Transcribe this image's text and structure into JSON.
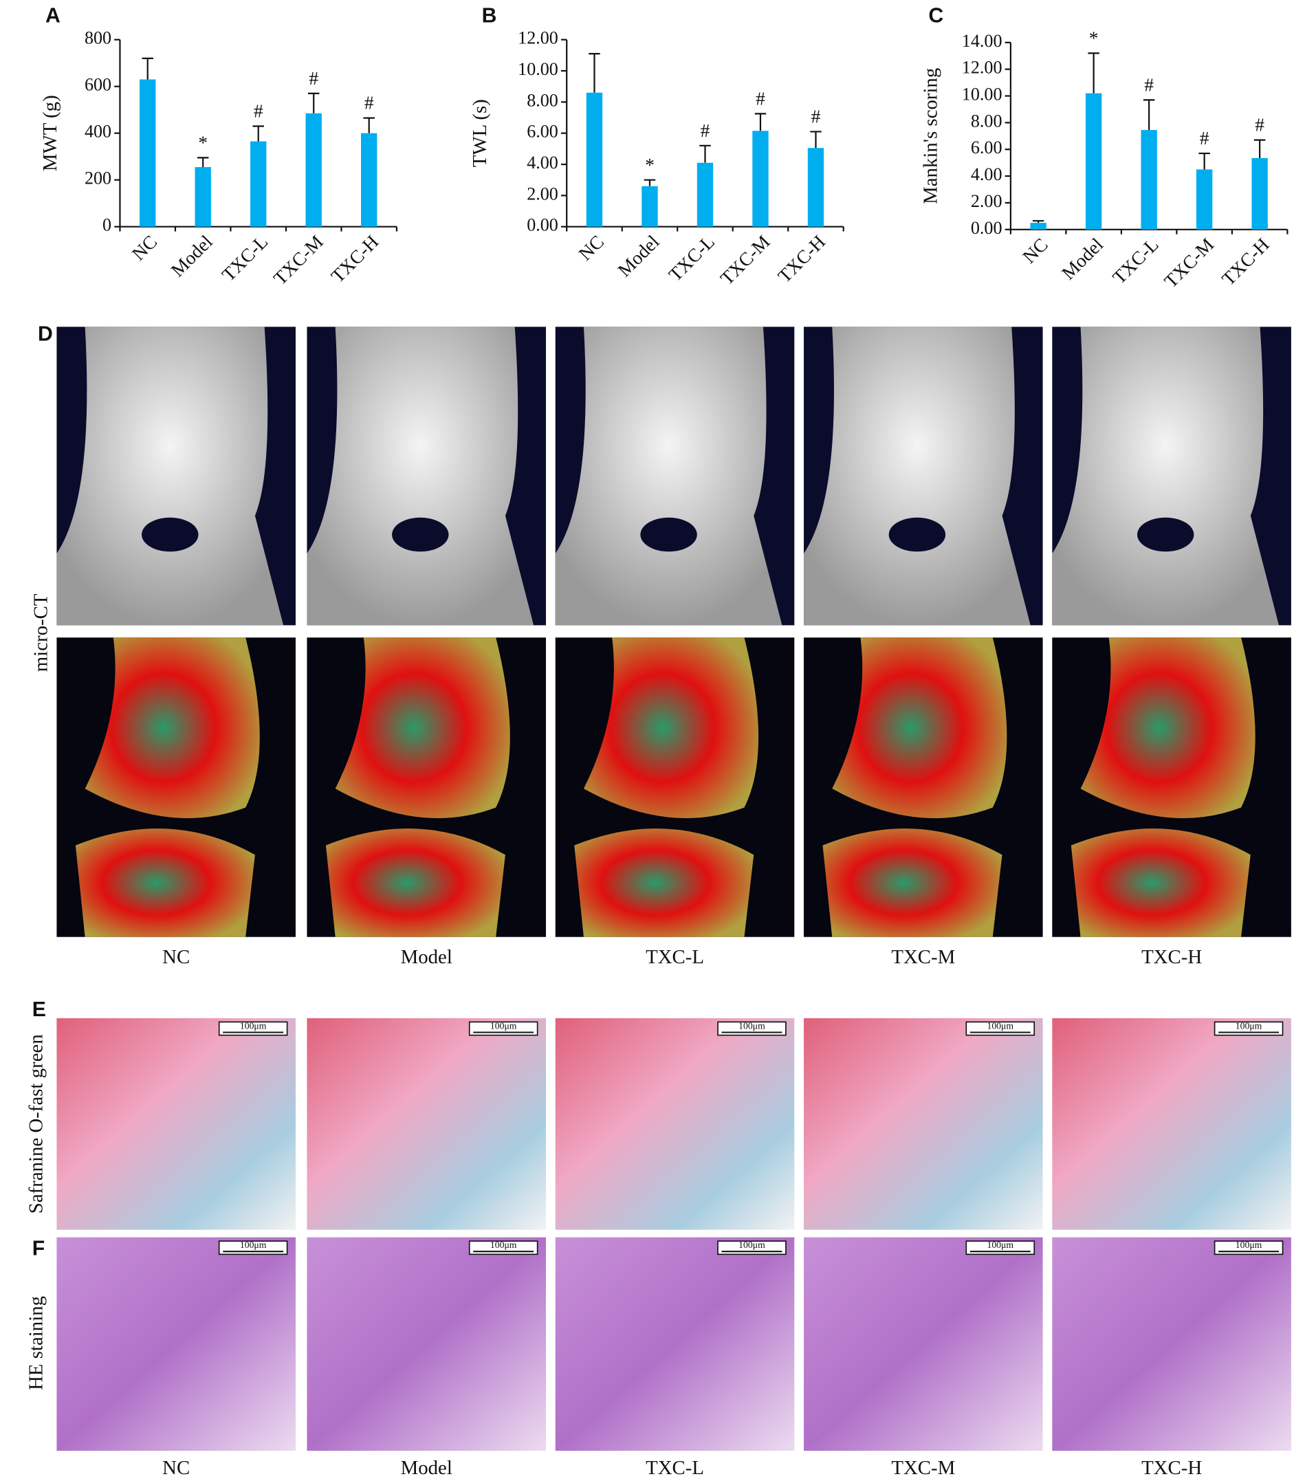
{
  "chart_data": [
    {
      "type": "bar",
      "panel": "A",
      "ylabel": "MWT (g)",
      "categories": [
        "NC",
        "Model",
        "TXC-L",
        "TXC-M",
        "TXC-H"
      ],
      "values": [
        630,
        255,
        365,
        485,
        400
      ],
      "errors": [
        90,
        40,
        65,
        85,
        65
      ],
      "annotations": [
        null,
        "*",
        "#",
        "#",
        "#"
      ],
      "color": "#00aeef",
      "ylim": [
        0,
        800
      ],
      "yticks": [
        0,
        200,
        400,
        600,
        800
      ]
    },
    {
      "type": "bar",
      "panel": "B",
      "ylabel": "TWL (s)",
      "categories": [
        "NC",
        "Model",
        "TXC-L",
        "TXC-M",
        "TXC-H"
      ],
      "values": [
        8.6,
        2.6,
        4.1,
        6.15,
        5.05
      ],
      "errors": [
        2.5,
        0.4,
        1.1,
        1.1,
        1.05
      ],
      "annotations": [
        null,
        "*",
        "#",
        "#",
        "#"
      ],
      "color": "#00aeef",
      "ylim": [
        0,
        12
      ],
      "yticks": [
        {
          "value": 0,
          "label": "0.00"
        },
        {
          "value": 2,
          "label": "2.00"
        },
        {
          "value": 4,
          "label": "4.00"
        },
        {
          "value": 6,
          "label": "6.00"
        },
        {
          "value": 8,
          "label": "8.00"
        },
        {
          "value": 10,
          "label": "10.00"
        },
        {
          "value": 12,
          "label": "12.00"
        }
      ]
    },
    {
      "type": "bar",
      "panel": "C",
      "ylabel": "Mankin's scoring",
      "categories": [
        "NC",
        "Model",
        "TXC-L",
        "TXC-M",
        "TXC-H"
      ],
      "values": [
        0.5,
        10.2,
        7.45,
        4.5,
        5.35
      ],
      "errors": [
        0.15,
        3.0,
        2.25,
        1.2,
        1.35
      ],
      "annotations": [
        null,
        "*",
        "#",
        "#",
        "#"
      ],
      "color": "#00aeef",
      "ylim": [
        0,
        14
      ],
      "yticks": [
        {
          "value": 0,
          "label": "0.00"
        },
        {
          "value": 2,
          "label": "2.00"
        },
        {
          "value": 4,
          "label": "4.00"
        },
        {
          "value": 6,
          "label": "6.00"
        },
        {
          "value": 8,
          "label": "8.00"
        },
        {
          "value": 10,
          "label": "10.00"
        },
        {
          "value": 12,
          "label": "12.00"
        },
        {
          "value": 14,
          "label": "14.00"
        }
      ]
    }
  ],
  "figure": {
    "groups": [
      "NC",
      "Model",
      "TXC-L",
      "TXC-M",
      "TXC-H"
    ],
    "panel_d": {
      "label": "D",
      "row_label": "micro-CT"
    },
    "panel_e": {
      "label": "E",
      "row_label": "Safranine O-fast green"
    },
    "panel_f": {
      "label": "F",
      "row_label": "HE staining"
    },
    "scale_bar": "100μm"
  }
}
